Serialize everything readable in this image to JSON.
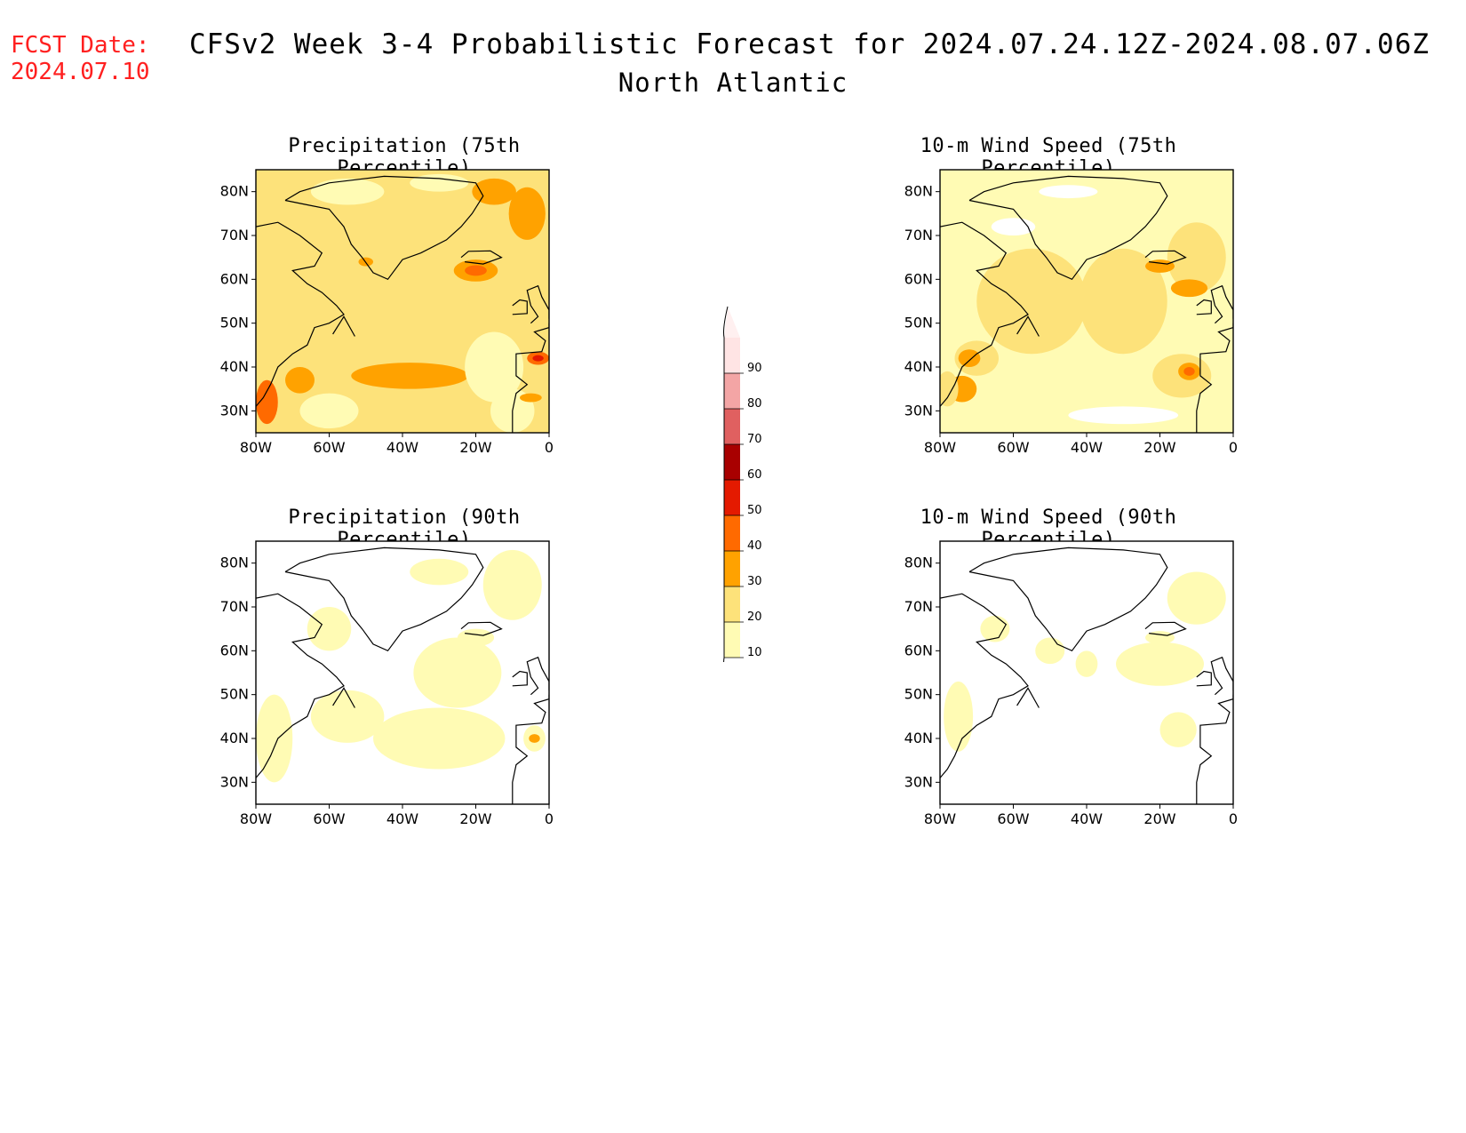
{
  "header": {
    "fcst_label": "FCST Date:",
    "fcst_date": "2024.07.10",
    "title": "CFSv2 Week 3-4 Probabilistic Forecast for 2024.07.24.12Z-2024.08.07.06Z",
    "region": "North Atlantic"
  },
  "panels": [
    {
      "title": "Precipitation (75th Percentile)"
    },
    {
      "title": "10-m Wind Speed (75th Percentile)"
    },
    {
      "title": "Precipitation (90th Percentile)"
    },
    {
      "title": "10-m Wind Speed (90th Percentile)"
    }
  ],
  "axes": {
    "lat_labels": [
      "80N",
      "70N",
      "60N",
      "50N",
      "40N",
      "30N"
    ],
    "lon_labels": [
      "80W",
      "60W",
      "40W",
      "20W",
      "0"
    ]
  },
  "colorbar": {
    "labels": [
      "10",
      "20",
      "30",
      "40",
      "50",
      "60",
      "70",
      "80",
      "90"
    ],
    "colors": [
      "#fffbb4",
      "#fde27a",
      "#ffa200",
      "#ff6a00",
      "#e41a00",
      "#a80000",
      "#e06060",
      "#f3a5a5",
      "#ffe4e4"
    ]
  }
}
